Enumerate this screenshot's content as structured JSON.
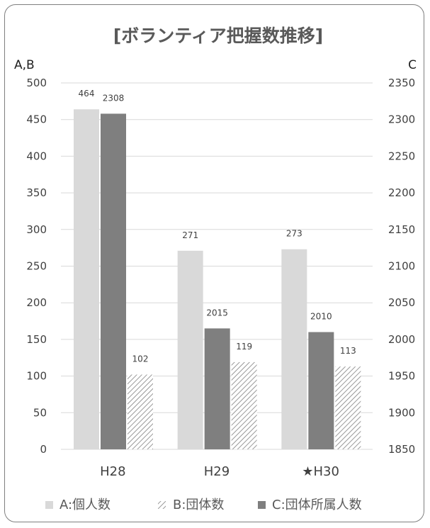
{
  "chart_data": {
    "type": "bar",
    "title": "[ボランティア把握数推移]",
    "left_axis_title": "A,B",
    "right_axis_title": "C",
    "categories": [
      "H28",
      "H29",
      "★H30"
    ],
    "left_ylim": [
      0,
      500
    ],
    "left_ticks": [
      "0",
      "50",
      "100",
      "150",
      "200",
      "250",
      "300",
      "350",
      "400",
      "450",
      "500"
    ],
    "right_ylim": [
      1850,
      2350
    ],
    "right_ticks": [
      "1850",
      "1900",
      "1950",
      "2000",
      "2050",
      "2100",
      "2150",
      "2200",
      "2250",
      "2300",
      "2350"
    ],
    "grid": true,
    "legend_position": "bottom",
    "series": [
      {
        "name": "A:個人数",
        "axis": "left",
        "values": [
          464,
          271,
          273
        ],
        "labels": [
          "464",
          "271",
          "273"
        ],
        "color": "#d9d9d9",
        "pattern": "solid"
      },
      {
        "name": "B:団体数",
        "axis": "left",
        "values": [
          102,
          119,
          113
        ],
        "labels": [
          "102",
          "119",
          "113"
        ],
        "color": "#7f7f7f",
        "pattern": "hatch"
      },
      {
        "name": "C:団体所属人数",
        "axis": "right",
        "values": [
          2308,
          2015,
          2010
        ],
        "labels": [
          "2308",
          "2015",
          "2010"
        ],
        "color": "#7f7f7f",
        "pattern": "solid"
      }
    ]
  }
}
